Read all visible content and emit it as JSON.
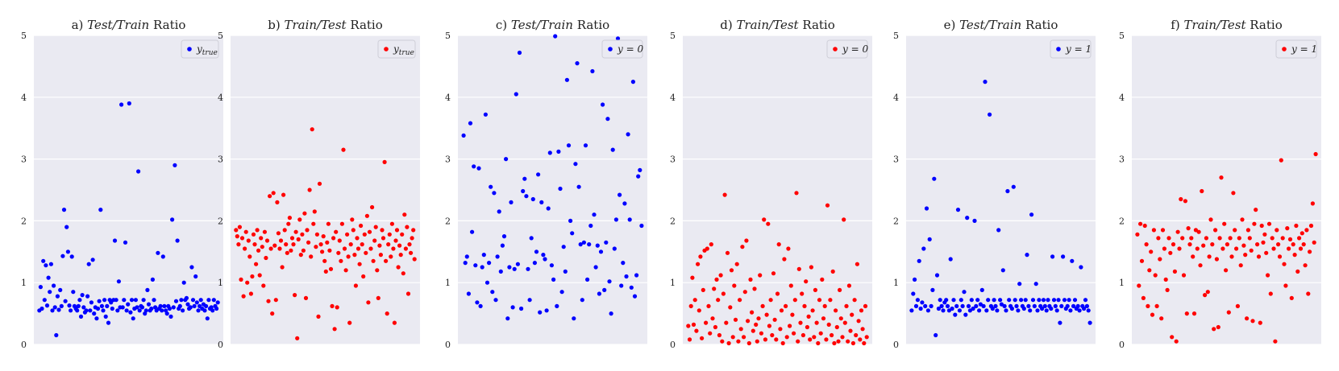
{
  "chart_data": [
    {
      "type": "scatter",
      "title": "a) Test/Train Ratio",
      "title_prefix": "a) ",
      "title_math": "Test/Train",
      "title_suffix": " Ratio",
      "legend": "y_true",
      "legend_base": "y",
      "legend_sub": "true",
      "color": "#0000ff",
      "ylim": [
        0,
        5
      ],
      "yticks": [
        "0",
        "1",
        "2",
        "3",
        "4",
        "5"
      ],
      "grid": true,
      "legend_position": "top-right",
      "y": [
        0.55,
        0.93,
        0.58,
        1.35,
        0.72,
        1.28,
        0.63,
        1.08,
        0.85,
        1.3,
        0.55,
        0.95,
        0.6,
        0.15,
        0.78,
        0.56,
        0.88,
        0.62,
        1.43,
        2.18,
        0.7,
        1.9,
        1.5,
        0.63,
        0.55,
        1.42,
        0.85,
        0.62,
        0.58,
        0.55,
        0.62,
        0.72,
        0.45,
        0.8,
        0.6,
        0.52,
        0.55,
        0.78,
        1.3,
        0.55,
        0.68,
        1.37,
        0.5,
        0.6,
        0.42,
        0.58,
        0.7,
        2.18,
        0.62,
        0.55,
        0.72,
        0.45,
        0.62,
        0.35,
        0.72,
        0.68,
        0.58,
        0.72,
        1.68,
        0.72,
        0.55,
        1.02,
        0.6,
        3.88,
        0.6,
        0.72,
        1.65,
        0.55,
        0.65,
        3.9,
        0.52,
        0.72,
        0.42,
        0.58,
        0.72,
        0.6,
        2.8,
        0.55,
        0.62,
        0.6,
        0.72,
        0.5,
        0.55,
        0.88,
        0.65,
        0.55,
        0.58,
        1.05,
        0.72,
        0.6,
        0.55,
        1.48,
        0.58,
        0.62,
        0.55,
        1.42,
        0.62,
        0.55,
        0.5,
        0.62,
        0.58,
        0.45,
        2.02,
        0.6,
        2.9,
        0.7,
        1.68,
        0.58,
        0.62,
        0.72,
        0.55,
        1.0,
        0.72,
        0.75,
        0.65,
        0.58,
        0.6,
        1.25,
        0.72,
        0.62,
        1.1,
        0.68,
        0.55,
        0.62,
        0.72,
        0.58,
        0.65,
        0.55,
        0.62,
        0.42,
        0.72,
        0.58,
        0.6,
        0.55,
        0.72,
        0.62,
        0.58,
        0.68
      ]
    },
    {
      "type": "scatter",
      "title": "b) Train/Test Ratio",
      "title_prefix": "b) ",
      "title_math": "Train/Test",
      "title_suffix": " Ratio",
      "legend": "y_true",
      "legend_base": "y",
      "legend_sub": "true",
      "color": "#ff0000",
      "ylim": [
        0,
        5
      ],
      "yticks": [
        "0",
        "1",
        "2",
        "3",
        "4",
        "5"
      ],
      "grid": true,
      "legend_position": "top-right",
      "y": [
        1.85,
        1.75,
        1.62,
        1.9,
        1.05,
        1.72,
        0.78,
        1.55,
        1.82,
        1.0,
        1.68,
        1.42,
        0.82,
        1.1,
        1.78,
        1.62,
        1.3,
        1.85,
        1.52,
        1.12,
        1.72,
        1.58,
        0.95,
        1.82,
        1.4,
        1.68,
        0.7,
        2.4,
        1.55,
        0.5,
        2.45,
        1.6,
        0.72,
        2.3,
        1.8,
        1.55,
        1.68,
        1.25,
        2.42,
        1.85,
        1.62,
        1.48,
        1.95,
        2.05,
        1.52,
        1.72,
        1.62,
        0.8,
        1.82,
        0.1,
        1.7,
        2.02,
        1.45,
        1.78,
        1.52,
        2.12,
        0.75,
        1.85,
        1.65,
        2.5,
        1.42,
        3.48,
        1.95,
        2.15,
        1.58,
        1.78,
        0.45,
        2.6,
        1.62,
        1.5,
        1.75,
        1.35,
        1.18,
        1.65,
        1.95,
        1.52,
        1.22,
        0.62,
        1.72,
        0.25,
        1.82,
        0.6,
        1.48,
        1.68,
        1.35,
        1.95,
        3.15,
        1.55,
        1.2,
        1.78,
        1.42,
        0.35,
        1.62,
        2.02,
        1.85,
        1.45,
        0.95,
        1.72,
        1.55,
        1.3,
        1.92,
        1.62,
        1.1,
        1.78,
        1.48,
        2.08,
        0.68,
        1.82,
        1.55,
        2.22,
        1.35,
        1.68,
        1.9,
        1.2,
        0.75,
        1.6,
        1.45,
        1.85,
        1.72,
        2.95,
        1.35,
        0.5,
        1.62,
        1.78,
        1.42,
        1.95,
        1.55,
        0.35,
        1.68,
        1.85,
        1.25,
        1.6,
        1.45,
        1.78,
        1.15,
        2.1,
        1.55,
        1.9,
        0.82,
        1.62,
        1.48,
        1.72,
        1.85,
        1.38
      ]
    },
    {
      "type": "scatter",
      "title": "c) Test/Train Ratio",
      "title_prefix": "c) ",
      "title_math": "Test/Train",
      "title_suffix": " Ratio",
      "legend": "y = 0",
      "legend_base": "y = 0",
      "legend_sub": "",
      "color": "#0000ff",
      "ylim": [
        0,
        5
      ],
      "yticks": [
        "0",
        "1",
        "2",
        "3",
        "4",
        "5"
      ],
      "grid": true,
      "legend_position": "top-right",
      "y": [
        3.38,
        1.32,
        1.42,
        0.82,
        3.58,
        1.82,
        2.88,
        1.28,
        0.68,
        2.85,
        0.62,
        1.25,
        1.45,
        3.72,
        1.0,
        1.32,
        2.55,
        0.85,
        2.45,
        0.72,
        1.42,
        2.15,
        1.18,
        1.6,
        1.75,
        3.0,
        0.42,
        1.25,
        2.3,
        0.6,
        1.22,
        4.05,
        1.3,
        4.72,
        0.58,
        2.48,
        2.68,
        2.4,
        1.22,
        0.72,
        1.72,
        2.35,
        1.32,
        1.5,
        2.75,
        0.52,
        2.3,
        1.45,
        1.38,
        0.55,
        2.2,
        3.1,
        1.28,
        1.05,
        5.0,
        0.62,
        3.12,
        2.52,
        0.85,
        1.58,
        1.18,
        4.28,
        3.22,
        2.0,
        1.8,
        0.42,
        2.92,
        4.55,
        2.55,
        1.62,
        0.72,
        1.65,
        3.22,
        1.05,
        1.62,
        1.92,
        4.42,
        2.1,
        1.25,
        1.6,
        0.82,
        1.5,
        3.88,
        0.88,
        1.65,
        3.65,
        1.02,
        0.5,
        3.15,
        1.55,
        2.02,
        4.95,
        2.42,
        0.95,
        1.32,
        2.28,
        1.1,
        3.4,
        2.02,
        0.92,
        4.25,
        0.78,
        1.12,
        2.72,
        2.82,
        1.92
      ]
    },
    {
      "type": "scatter",
      "title": "d) Train/Test Ratio",
      "title_prefix": "d) ",
      "title_math": "Train/Test",
      "title_suffix": " Ratio",
      "legend": "y = 0",
      "legend_base": "y = 0",
      "legend_sub": "",
      "color": "#ff0000",
      "ylim": [
        0,
        5
      ],
      "yticks": [
        "0",
        "1",
        "2",
        "3",
        "4",
        "5"
      ],
      "grid": true,
      "legend_position": "top-right",
      "y": [
        0.3,
        0.08,
        0.62,
        1.08,
        0.32,
        0.72,
        0.22,
        1.3,
        0.55,
        1.42,
        0.1,
        0.88,
        1.52,
        0.35,
        1.55,
        0.62,
        0.18,
        1.62,
        0.42,
        0.9,
        0.28,
        1.05,
        0.72,
        0.15,
        1.12,
        0.05,
        0.82,
        2.42,
        0.35,
        1.48,
        0.02,
        0.6,
        1.2,
        0.12,
        0.95,
        0.4,
        1.3,
        0.05,
        0.72,
        0.25,
        1.58,
        0.12,
        0.85,
        1.68,
        0.38,
        0.02,
        1.05,
        0.52,
        0.22,
        0.9,
        0.32,
        0.05,
        0.42,
        1.12,
        0.18,
        0.62,
        2.02,
        0.08,
        0.48,
        1.95,
        0.3,
        0.72,
        0.15,
        1.15,
        0.4,
        0.08,
        0.82,
        1.62,
        0.25,
        0.55,
        0.02,
        1.38,
        0.62,
        0.12,
        1.55,
        0.3,
        0.95,
        0.48,
        0.18,
        0.72,
        2.45,
        0.05,
        1.22,
        0.35,
        0.82,
        0.15,
        0.62,
        1.02,
        0.28,
        0.45,
        0.08,
        1.25,
        0.55,
        0.12,
        0.88,
        0.35,
        0.02,
        0.72,
        0.18,
        1.05,
        0.42,
        0.62,
        0.08,
        2.25,
        0.32,
        0.72,
        0.15,
        1.18,
        0.02,
        0.55,
        0.28,
        0.05,
        0.88,
        0.42,
        0.12,
        2.02,
        0.35,
        0.62,
        0.05,
        0.95,
        0.22,
        0.48,
        0.02,
        0.72,
        0.15,
        1.3,
        0.38,
        0.08,
        0.55,
        0.25,
        0.02,
        0.62,
        0.12
      ]
    },
    {
      "type": "scatter",
      "title": "e) Test/Train Ratio",
      "title_prefix": "e) ",
      "title_math": "Test/Train",
      "title_suffix": " Ratio",
      "legend": "y = 1",
      "legend_base": "y = 1",
      "legend_sub": "",
      "color": "#0000ff",
      "ylim": [
        0,
        5
      ],
      "yticks": [
        "0",
        "1",
        "2",
        "3",
        "4",
        "5"
      ],
      "grid": true,
      "legend_position": "top-right",
      "y": [
        0.55,
        0.82,
        1.05,
        0.62,
        0.72,
        1.35,
        0.58,
        0.68,
        1.55,
        0.62,
        2.2,
        0.55,
        1.7,
        0.62,
        0.88,
        2.68,
        0.15,
        1.12,
        0.58,
        0.72,
        0.62,
        0.55,
        0.68,
        0.72,
        0.62,
        0.55,
        1.38,
        0.58,
        0.72,
        0.48,
        0.62,
        2.18,
        0.55,
        0.72,
        0.62,
        0.85,
        0.48,
        2.05,
        0.62,
        0.55,
        0.72,
        0.58,
        2.0,
        0.62,
        0.72,
        0.55,
        0.65,
        0.88,
        0.62,
        4.25,
        0.55,
        0.72,
        3.72,
        0.62,
        0.58,
        0.72,
        0.62,
        0.55,
        1.85,
        0.72,
        0.65,
        1.2,
        0.62,
        0.55,
        2.48,
        0.72,
        0.62,
        0.58,
        2.55,
        0.72,
        0.62,
        0.55,
        0.98,
        0.72,
        0.62,
        0.58,
        0.72,
        1.45,
        0.62,
        0.55,
        2.1,
        0.72,
        0.62,
        0.98,
        0.55,
        0.72,
        0.62,
        0.58,
        0.72,
        0.62,
        0.55,
        0.72,
        0.62,
        0.58,
        1.42,
        0.72,
        0.62,
        0.55,
        0.72,
        0.35,
        0.62,
        1.42,
        0.72,
        0.58,
        0.62,
        0.72,
        0.55,
        1.35,
        0.62,
        0.72,
        0.58,
        0.62,
        0.55,
        1.25,
        0.62,
        0.58,
        0.72,
        0.62,
        0.55,
        0.35
      ]
    },
    {
      "type": "scatter",
      "title": "f) Train/Test Ratio",
      "title_prefix": "f) ",
      "title_math": "Train/Test",
      "title_suffix": " Ratio",
      "legend": "y = 1",
      "legend_base": "y = 1",
      "legend_sub": "",
      "color": "#ff0000",
      "ylim": [
        0,
        5
      ],
      "yticks": [
        "0",
        "1",
        "2",
        "3",
        "4",
        "5"
      ],
      "grid": true,
      "legend_position": "top-right",
      "y": [
        1.78,
        0.95,
        1.95,
        1.35,
        0.75,
        1.92,
        1.62,
        0.62,
        1.2,
        1.5,
        0.48,
        1.85,
        1.12,
        0.62,
        1.72,
        1.38,
        0.42,
        1.85,
        1.55,
        1.05,
        0.88,
        1.72,
        1.48,
        0.12,
        1.62,
        1.18,
        0.05,
        1.82,
        1.55,
        2.35,
        1.72,
        1.12,
        2.32,
        0.5,
        1.88,
        1.62,
        1.72,
        1.42,
        0.5,
        1.85,
        1.55,
        1.82,
        1.28,
        2.48,
        1.6,
        0.8,
        1.72,
        0.85,
        1.42,
        2.02,
        1.62,
        0.25,
        1.85,
        1.38,
        0.28,
        1.72,
        2.7,
        1.55,
        1.95,
        1.2,
        1.62,
        0.52,
        1.72,
        1.42,
        2.45,
        1.85,
        1.55,
        0.62,
        1.72,
        1.28,
        2.02,
        1.6,
        1.45,
        0.42,
        1.85,
        1.72,
        1.52,
        0.38,
        1.95,
        2.18,
        1.62,
        1.42,
        0.35,
        1.92,
        1.65,
        1.78,
        1.48,
        1.12,
        1.95,
        0.82,
        1.72,
        1.55,
        0.05,
        1.85,
        1.62,
        1.42,
        2.98,
        1.72,
        1.3,
        0.95,
        1.88,
        1.55,
        1.7,
        0.75,
        1.62,
        1.45,
        1.92,
        1.18,
        1.72,
        1.55,
        1.8,
        1.62,
        1.28,
        1.85,
        0.82,
        1.5,
        1.92,
        2.28,
        1.65,
        3.08
      ]
    }
  ]
}
